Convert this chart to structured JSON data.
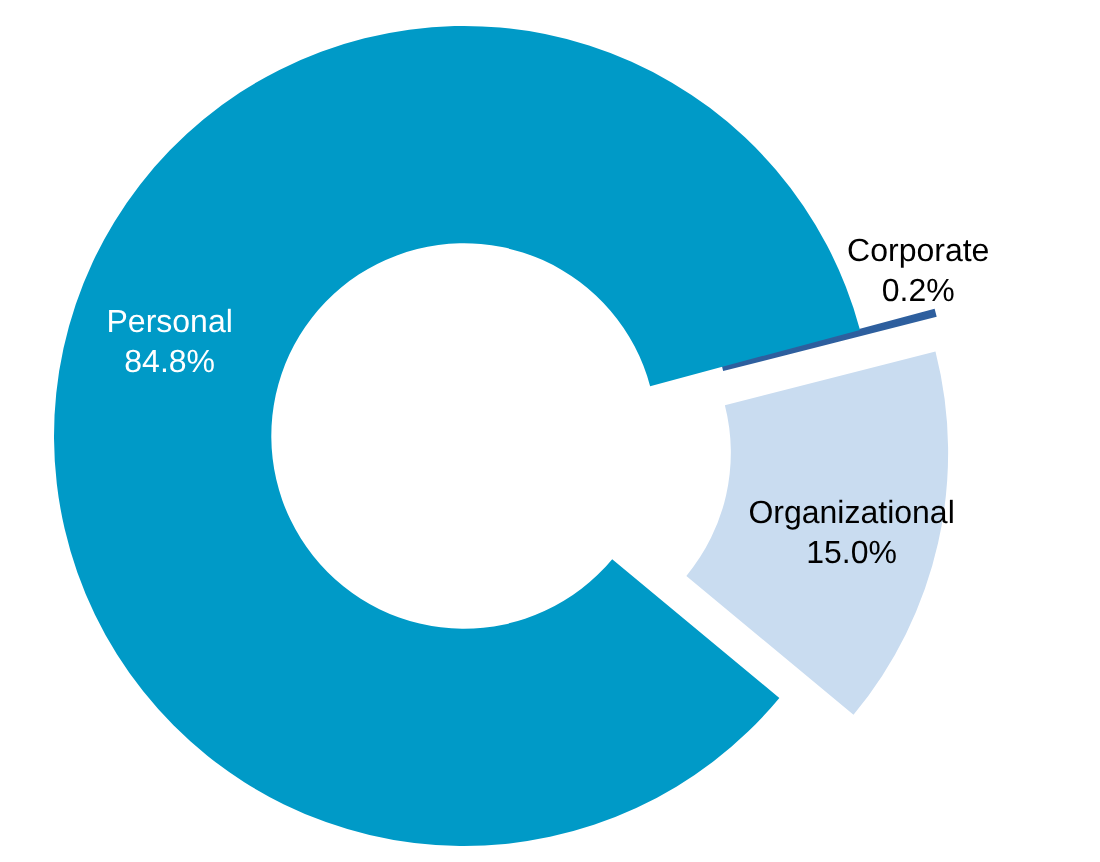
{
  "chart_data": {
    "type": "donut",
    "categories": [
      "Corporate",
      "Organizational",
      "Personal"
    ],
    "values": [
      0.2,
      15.0,
      84.8
    ],
    "colors": [
      "#2e5f9e",
      "#c9dcf0",
      "#009ac7"
    ],
    "value_labels": [
      "0.2%",
      "15.0%",
      "84.8%"
    ]
  }
}
